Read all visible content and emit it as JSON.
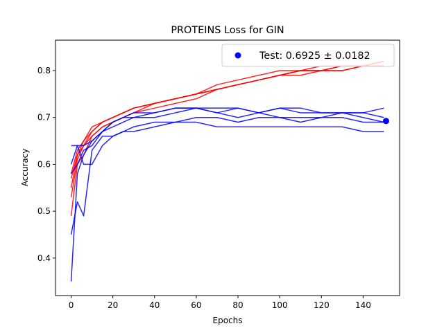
{
  "chart_data": {
    "type": "line",
    "title": "PROTEINS Loss for GIN",
    "xlabel": "Epochs",
    "ylabel": "Accuracy",
    "xlim": [
      -7.5,
      157.5
    ],
    "ylim": [
      0.32,
      0.865
    ],
    "xticks": [
      0,
      20,
      40,
      60,
      80,
      100,
      120,
      140
    ],
    "yticks": [
      0.4,
      0.5,
      0.6,
      0.7,
      0.8
    ],
    "grid": false,
    "legend": {
      "position": "top-right",
      "entries": [
        {
          "label": "Test: 0.6925 ± 0.0182",
          "color": "#0000ff",
          "marker": "circle"
        }
      ]
    },
    "colors": {
      "train": "#ff0000",
      "test": "#0000ff"
    },
    "train_runs": {
      "epochs": [
        0,
        3,
        6,
        10,
        15,
        20,
        25,
        30,
        40,
        50,
        60,
        70,
        80,
        90,
        100,
        110,
        120,
        130,
        140,
        150
      ],
      "series": [
        {
          "values": [
            0.49,
            0.6,
            0.62,
            0.66,
            0.68,
            0.69,
            0.7,
            0.71,
            0.73,
            0.74,
            0.75,
            0.76,
            0.77,
            0.78,
            0.79,
            0.79,
            0.8,
            0.8,
            0.81,
            0.81
          ]
        },
        {
          "values": [
            0.53,
            0.61,
            0.64,
            0.67,
            0.69,
            0.7,
            0.71,
            0.72,
            0.73,
            0.74,
            0.75,
            0.77,
            0.78,
            0.79,
            0.8,
            0.8,
            0.81,
            0.81,
            0.81,
            0.82
          ]
        },
        {
          "values": [
            0.55,
            0.62,
            0.64,
            0.66,
            0.68,
            0.69,
            0.7,
            0.71,
            0.72,
            0.73,
            0.74,
            0.76,
            0.77,
            0.78,
            0.79,
            0.8,
            0.8,
            0.8,
            0.81,
            0.81
          ]
        },
        {
          "values": [
            0.57,
            0.62,
            0.65,
            0.67,
            0.69,
            0.7,
            0.71,
            0.72,
            0.73,
            0.74,
            0.75,
            0.76,
            0.77,
            0.78,
            0.79,
            0.8,
            0.8,
            0.81,
            0.81,
            0.82
          ]
        },
        {
          "values": [
            0.58,
            0.63,
            0.65,
            0.68,
            0.69,
            0.7,
            0.71,
            0.72,
            0.73,
            0.74,
            0.75,
            0.76,
            0.77,
            0.78,
            0.79,
            0.8,
            0.8,
            0.81,
            0.81,
            0.81
          ]
        }
      ]
    },
    "test_runs": {
      "epochs": [
        0,
        3,
        6,
        10,
        15,
        20,
        25,
        30,
        40,
        50,
        60,
        70,
        80,
        90,
        100,
        110,
        120,
        130,
        140,
        150
      ],
      "series": [
        {
          "values": [
            0.35,
            0.58,
            0.62,
            0.65,
            0.67,
            0.68,
            0.69,
            0.7,
            0.7,
            0.71,
            0.72,
            0.71,
            0.7,
            0.71,
            0.7,
            0.7,
            0.7,
            0.71,
            0.7,
            0.69
          ]
        },
        {
          "values": [
            0.45,
            0.52,
            0.49,
            0.63,
            0.66,
            0.66,
            0.67,
            0.68,
            0.69,
            0.69,
            0.7,
            0.7,
            0.69,
            0.7,
            0.7,
            0.69,
            0.7,
            0.7,
            0.69,
            0.69
          ]
        },
        {
          "values": [
            0.6,
            0.64,
            0.64,
            0.65,
            0.67,
            0.69,
            0.7,
            0.71,
            0.71,
            0.72,
            0.72,
            0.72,
            0.72,
            0.71,
            0.72,
            0.71,
            0.71,
            0.71,
            0.71,
            0.72
          ]
        },
        {
          "values": [
            0.64,
            0.64,
            0.6,
            0.6,
            0.64,
            0.66,
            0.67,
            0.67,
            0.68,
            0.69,
            0.69,
            0.68,
            0.68,
            0.68,
            0.68,
            0.68,
            0.68,
            0.68,
            0.67,
            0.67
          ]
        },
        {
          "values": [
            0.58,
            0.6,
            0.63,
            0.64,
            0.67,
            0.69,
            0.7,
            0.7,
            0.71,
            0.72,
            0.72,
            0.71,
            0.72,
            0.71,
            0.72,
            0.72,
            0.71,
            0.71,
            0.71,
            0.7
          ]
        }
      ]
    },
    "test_final_point": {
      "x": 151,
      "y": 0.6925
    }
  }
}
